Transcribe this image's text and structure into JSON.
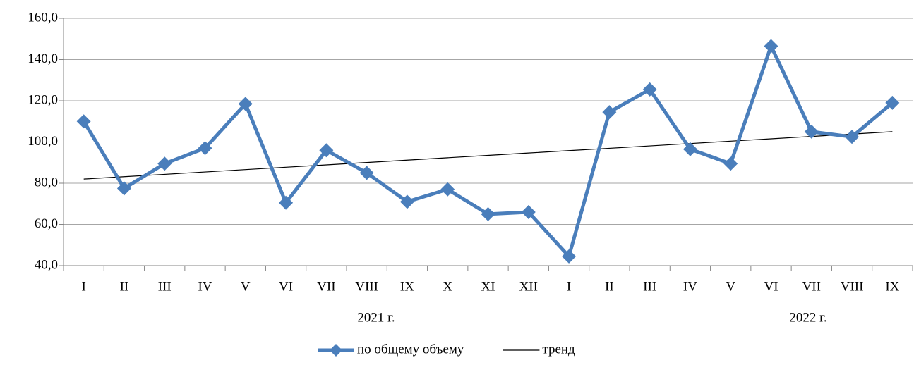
{
  "chart_data": {
    "type": "line",
    "categories": [
      "I",
      "II",
      "III",
      "IV",
      "V",
      "VI",
      "VII",
      "VIII",
      "IX",
      "X",
      "XI",
      "XII",
      "I",
      "II",
      "III",
      "IV",
      "V",
      "VI",
      "VII",
      "VIII",
      "IX"
    ],
    "group_labels": [
      "2021 г.",
      "2022 г."
    ],
    "series": [
      {
        "name": "по общему объему",
        "color": "#4a7ebb",
        "marker": "diamond",
        "values": [
          110,
          77.5,
          89.5,
          97,
          118.5,
          70.5,
          96,
          85,
          71,
          77,
          65,
          66,
          44.5,
          114.5,
          125.5,
          96.5,
          89.5,
          146.5,
          105,
          102.5,
          119
        ]
      },
      {
        "name": "тренд",
        "color": "#000000",
        "values": [
          82,
          83.15,
          84.3,
          85.45,
          86.6,
          87.75,
          88.9,
          90.05,
          91.2,
          92.35,
          93.5,
          94.65,
          95.8,
          96.95,
          98.1,
          99.25,
          100.4,
          101.55,
          102.7,
          103.85,
          105
        ]
      }
    ],
    "ylim": [
      40,
      160
    ],
    "yticks": [
      {
        "value": 40,
        "label": "40,0"
      },
      {
        "value": 60,
        "label": "60,0"
      },
      {
        "value": 80,
        "label": "80,0"
      },
      {
        "value": 100,
        "label": "100,0"
      },
      {
        "value": 120,
        "label": "120,0"
      },
      {
        "value": 140,
        "label": "140,0"
      },
      {
        "value": 160,
        "label": "160,0"
      }
    ],
    "grid": true,
    "legend": "bottom"
  }
}
